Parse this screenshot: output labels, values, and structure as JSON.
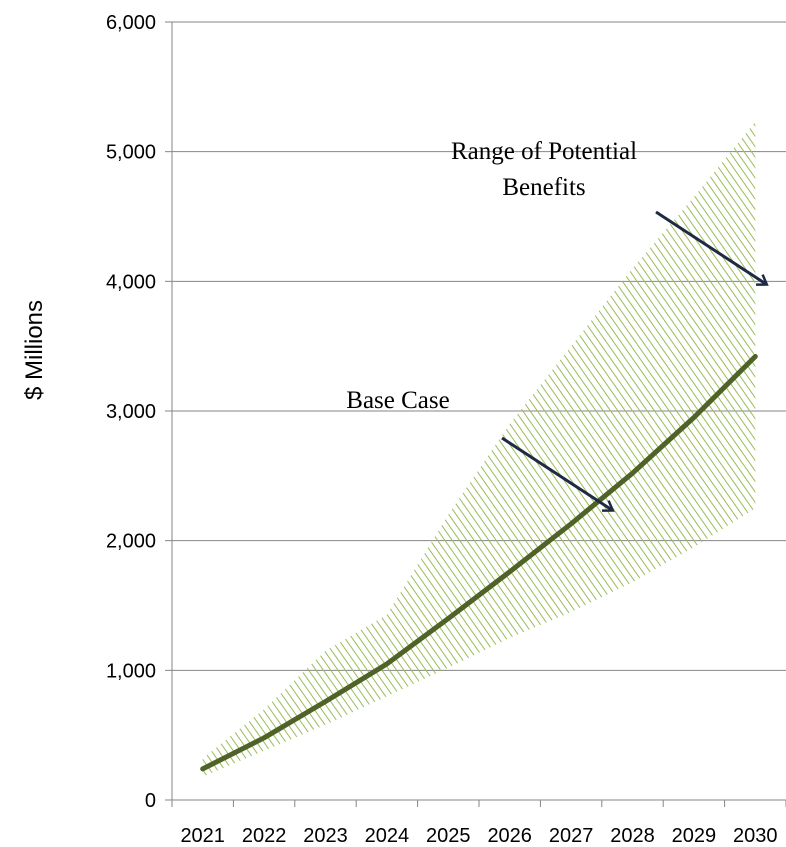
{
  "chart_data": {
    "type": "area",
    "categories": [
      "2021",
      "2022",
      "2023",
      "2024",
      "2025",
      "2026",
      "2027",
      "2028",
      "2029",
      "2030"
    ],
    "series": [
      {
        "values": [
          240,
          480,
          760,
          1050,
          1400,
          1760,
          2130,
          2520,
          2950,
          3420
        ]
      }
    ],
    "range": {
      "upper": [
        320,
        700,
        1150,
        1430,
        2200,
        2900,
        3500,
        4100,
        4650,
        5230
      ],
      "lower": [
        180,
        380,
        580,
        800,
        1020,
        1250,
        1450,
        1680,
        1950,
        2250
      ]
    },
    "ylabel": "$ Millions",
    "ylim": [
      0,
      6000
    ],
    "yticks": [
      "0",
      "1,000",
      "2,000",
      "3,000",
      "4,000",
      "5,000",
      "6,000"
    ],
    "grid": true,
    "annotations": {
      "range_line1": "Range of Potential",
      "range_line2": "Benefits",
      "base_case": "Base Case"
    },
    "colors": {
      "base_line": "#4f6228",
      "range_hatch": "#9bbb59",
      "arrow": "#1f2a44",
      "grid": "#868686"
    }
  }
}
